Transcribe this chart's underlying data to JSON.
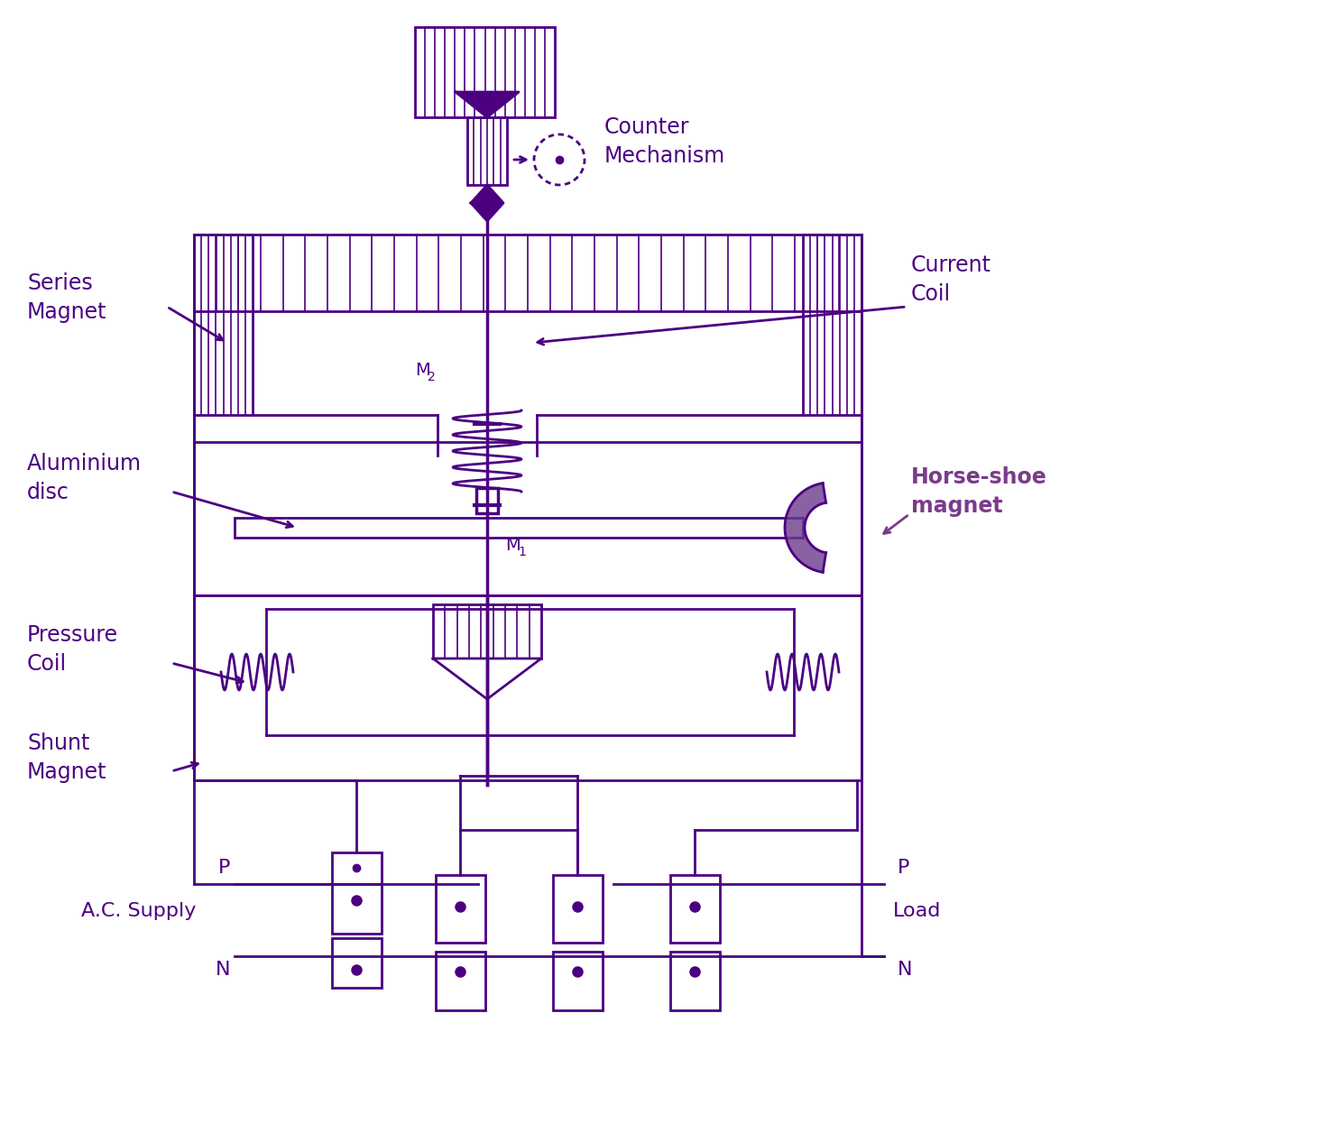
{
  "color": "#4B0082",
  "bg_color": "#ffffff",
  "lw": 2.0,
  "labels": {
    "series_magnet": "Series\nMagnet",
    "current_coil": "Current\nCoil",
    "aluminium_disc": "Aluminium\ndisc",
    "counter_mechanism": "Counter\nMechanism",
    "horse_shoe_magnet": "Horse-shoe\nmagnet",
    "pressure_coil": "Pressure\nCoil",
    "shunt_magnet": "Shunt\nMagnet",
    "m1": "M",
    "m1_sub": "1",
    "m2": "M",
    "m2_sub": "2",
    "p_supply": "P",
    "n_supply": "N",
    "ac_supply": "A.C. Supply",
    "p_load": "P",
    "n_load": "N",
    "load": "Load"
  }
}
